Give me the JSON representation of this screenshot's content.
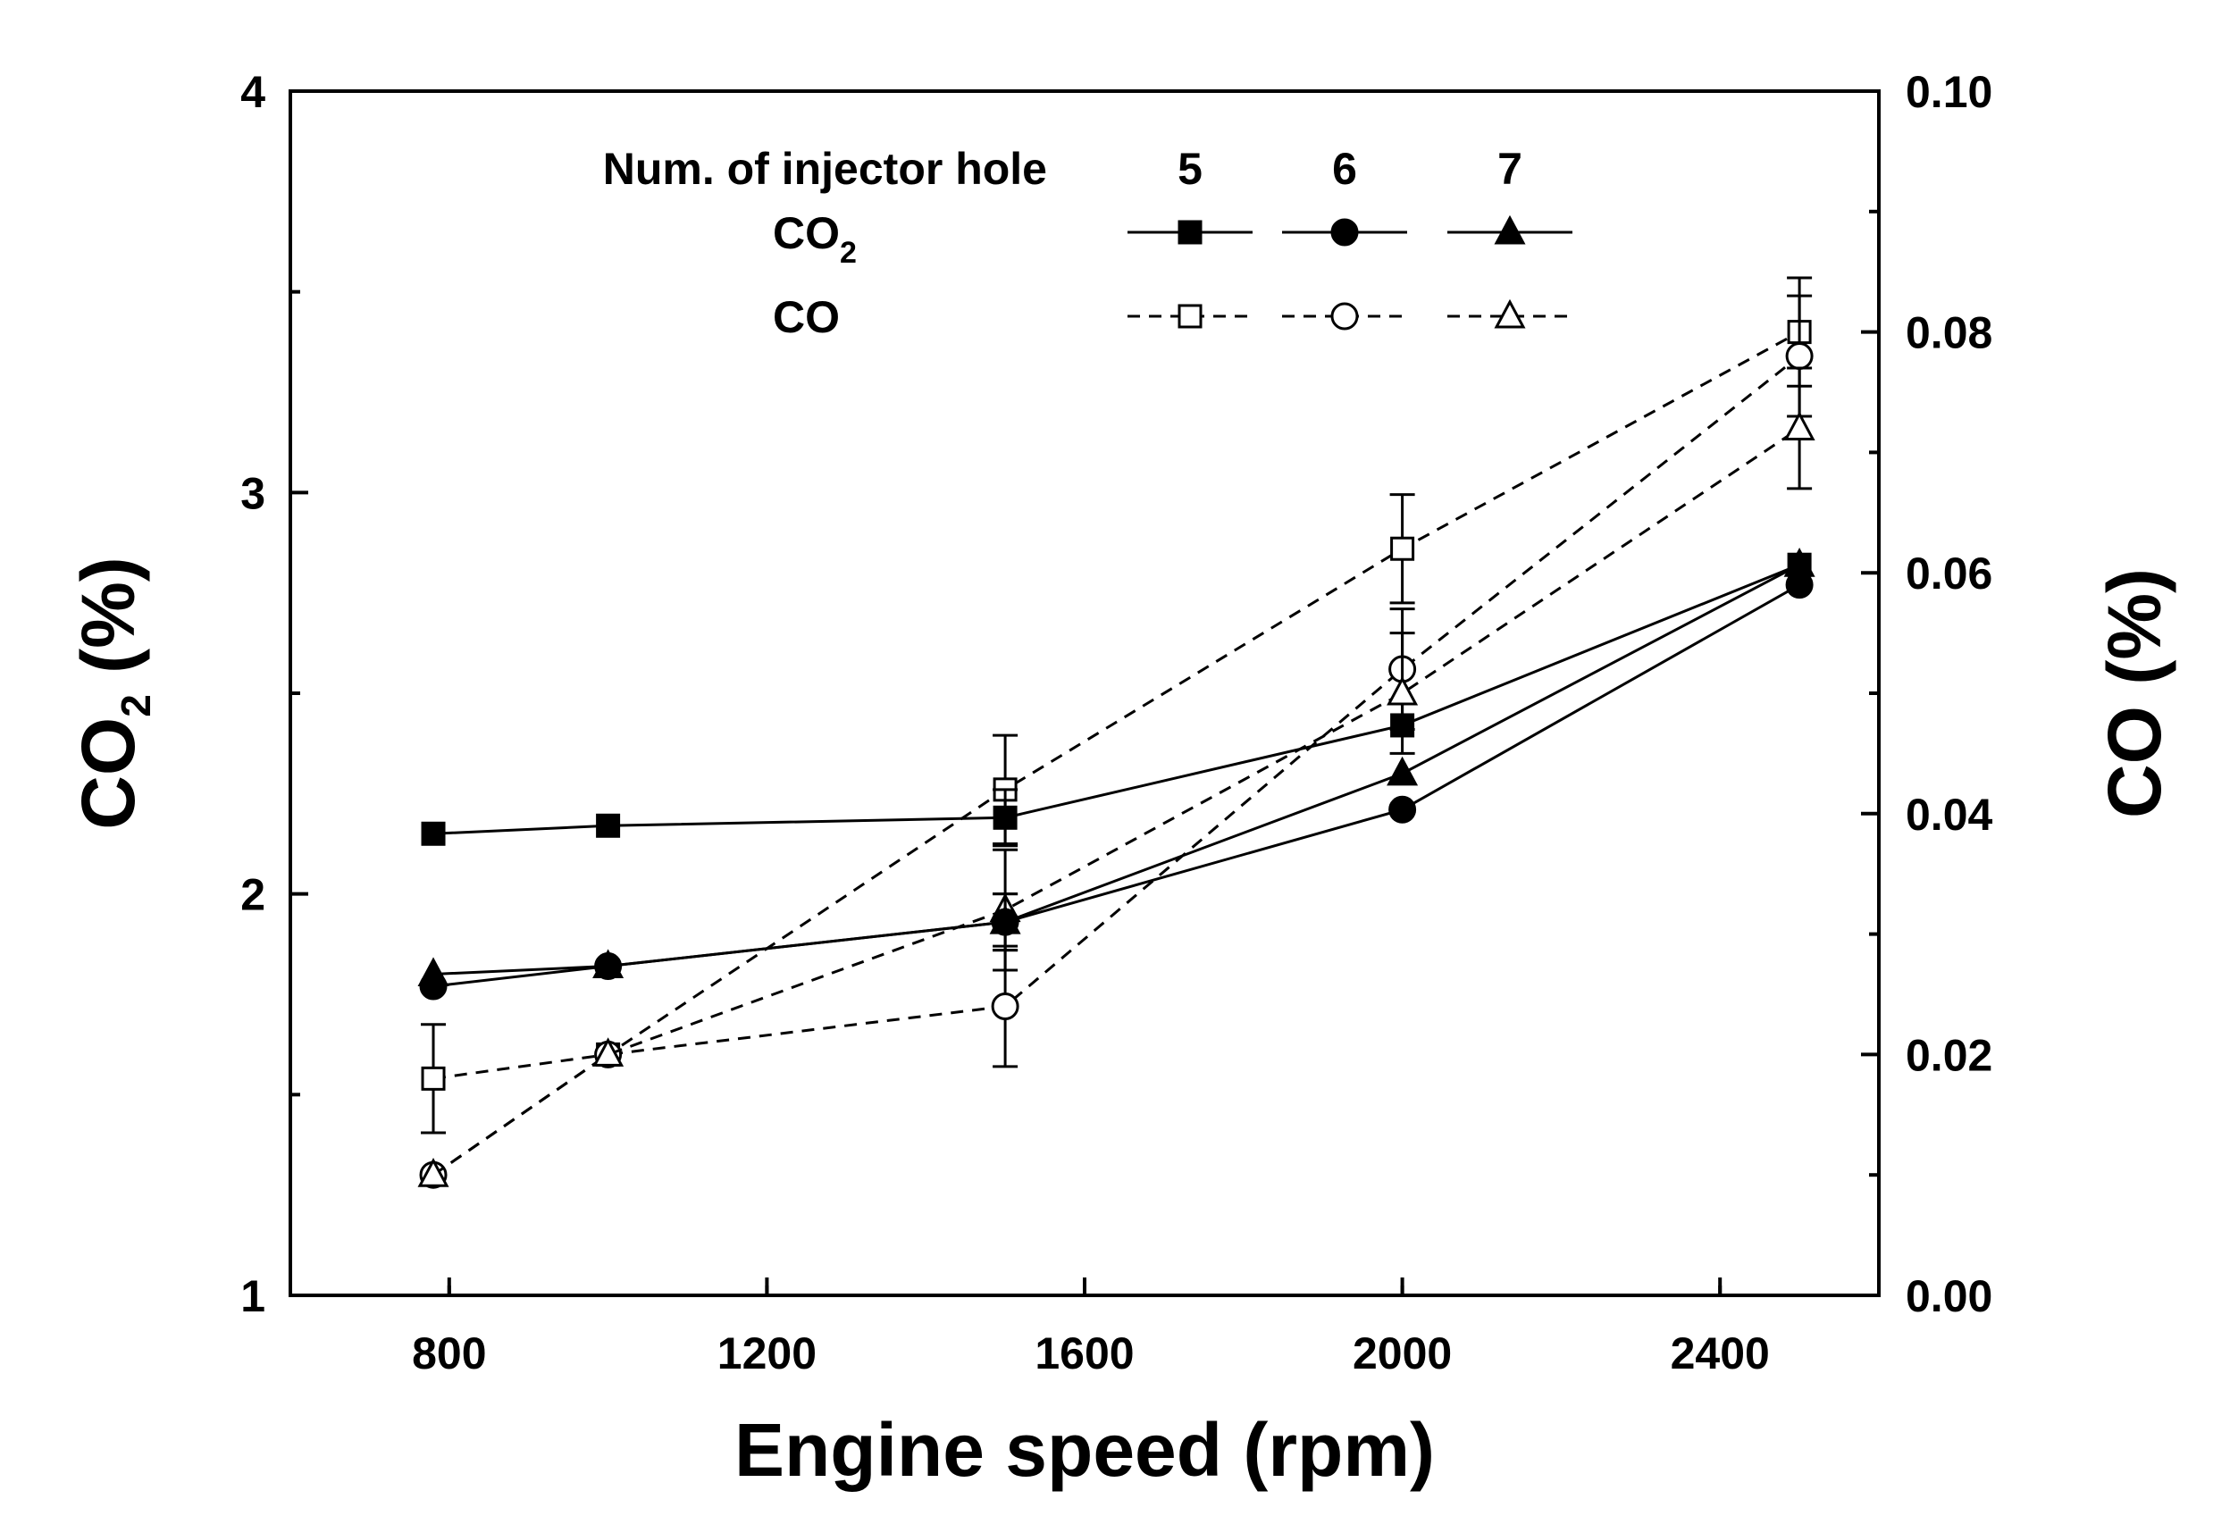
{
  "chart_data": {
    "type": "line",
    "xlabel": "Engine speed (rpm)",
    "ylabel_left": {
      "main": "CO",
      "sub": "2",
      "suffix": " (%)"
    },
    "ylabel_right": "CO (%)",
    "xlim": [
      600,
      2600
    ],
    "xticks": [
      800,
      1200,
      1600,
      2000,
      2400
    ],
    "ylim_left": [
      1,
      4
    ],
    "yticks_left": [
      1,
      2,
      3,
      4
    ],
    "yticks_left_labels": [
      "1",
      "2",
      "3",
      "4"
    ],
    "ylim_right": [
      0,
      0.1
    ],
    "yticks_right": [
      0,
      0.02,
      0.04,
      0.06,
      0.08,
      0.1
    ],
    "yticks_right_labels": [
      "0.00",
      "0.02",
      "0.04",
      "0.06",
      "0.08",
      "0.10"
    ],
    "legend": {
      "header": "Num. of injector hole",
      "columns": [
        "5",
        "6",
        "7"
      ],
      "co2_label": {
        "main": "CO",
        "sub": "2"
      },
      "co_label": "CO"
    },
    "series": [
      {
        "name": "CO2 - 5 holes",
        "axis": "left",
        "marker": "square",
        "filled": true,
        "dash": false,
        "x": [
          780,
          1000,
          1500,
          2000,
          2500
        ],
        "y": [
          2.15,
          2.17,
          2.19,
          2.42,
          2.82
        ],
        "err": [
          0,
          0,
          0.07,
          0,
          0
        ]
      },
      {
        "name": "CO2 - 6 holes",
        "axis": "left",
        "marker": "circle",
        "filled": true,
        "dash": false,
        "x": [
          780,
          1000,
          1500,
          2000,
          2500
        ],
        "y": [
          1.77,
          1.82,
          1.93,
          2.21,
          2.77
        ],
        "err": [
          0,
          0,
          0.07,
          0,
          0
        ]
      },
      {
        "name": "CO2 - 7 holes",
        "axis": "left",
        "marker": "triangle",
        "filled": true,
        "dash": false,
        "x": [
          780,
          1000,
          1500,
          2000,
          2500
        ],
        "y": [
          1.8,
          1.82,
          1.93,
          2.3,
          2.82
        ],
        "err": [
          0,
          0,
          0.07,
          0,
          0
        ]
      },
      {
        "name": "CO - 5 holes",
        "axis": "right",
        "marker": "square",
        "filled": false,
        "dash": true,
        "x": [
          780,
          1000,
          1500,
          2000,
          2500
        ],
        "y": [
          0.018,
          0.02,
          0.042,
          0.062,
          0.08
        ],
        "err": [
          0.0045,
          0,
          0.0045,
          0.0045,
          0.0045
        ]
      },
      {
        "name": "CO - 6 holes",
        "axis": "right",
        "marker": "circle",
        "filled": false,
        "dash": true,
        "x": [
          780,
          1000,
          1500,
          2000,
          2500
        ],
        "y": [
          0.01,
          0.02,
          0.024,
          0.052,
          0.078
        ],
        "err": [
          0,
          0,
          0.005,
          0.005,
          0.005
        ]
      },
      {
        "name": "CO - 7 holes",
        "axis": "right",
        "marker": "triangle",
        "filled": false,
        "dash": true,
        "x": [
          780,
          1000,
          1500,
          2000,
          2500
        ],
        "y": [
          0.01,
          0.02,
          0.032,
          0.05,
          0.072
        ],
        "err": [
          0,
          0,
          0.005,
          0.005,
          0.005
        ]
      }
    ]
  }
}
